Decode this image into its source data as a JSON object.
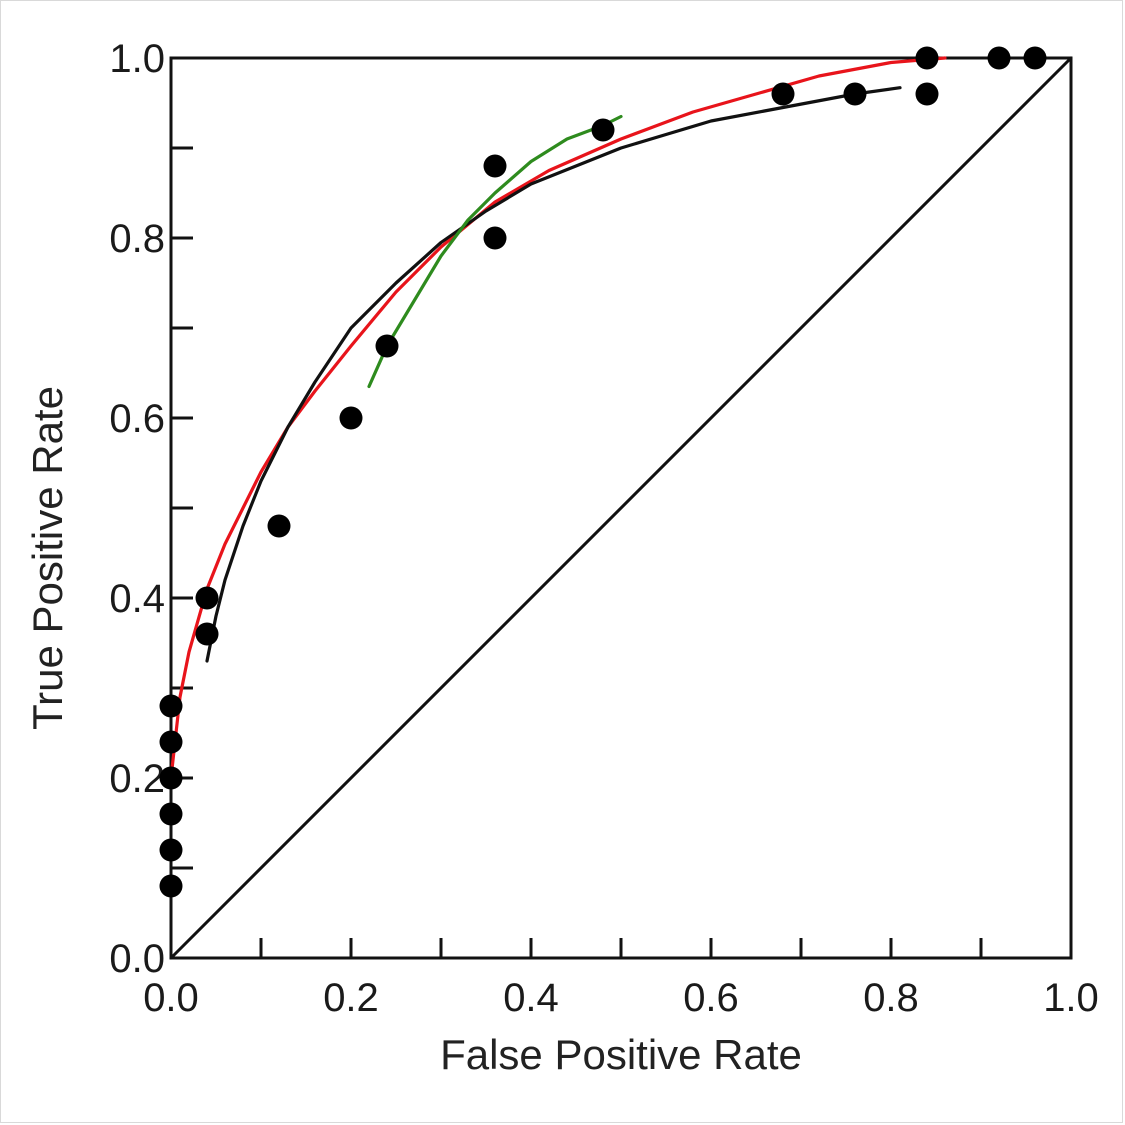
{
  "chart_data": {
    "type": "scatter",
    "title": "",
    "xlabel": "False Positive Rate",
    "ylabel": "True Positive Rate",
    "xlim": [
      0,
      1
    ],
    "ylim": [
      0,
      1
    ],
    "grid": false,
    "x_tick_labels": [
      "0.0",
      "0.2",
      "0.4",
      "0.6",
      "0.8",
      "1.0"
    ],
    "y_tick_labels": [
      "0.0",
      "0.2",
      "0.4",
      "0.6",
      "0.8",
      "1.0"
    ],
    "points": [
      {
        "x": 0.0,
        "y": 0.28
      },
      {
        "x": 0.0,
        "y": 0.24
      },
      {
        "x": 0.0,
        "y": 0.2
      },
      {
        "x": 0.0,
        "y": 0.16
      },
      {
        "x": 0.0,
        "y": 0.12
      },
      {
        "x": 0.0,
        "y": 0.08
      },
      {
        "x": 0.04,
        "y": 0.4
      },
      {
        "x": 0.04,
        "y": 0.36
      },
      {
        "x": 0.12,
        "y": 0.48
      },
      {
        "x": 0.2,
        "y": 0.6
      },
      {
        "x": 0.24,
        "y": 0.68
      },
      {
        "x": 0.36,
        "y": 0.88
      },
      {
        "x": 0.36,
        "y": 0.8
      },
      {
        "x": 0.48,
        "y": 0.92
      },
      {
        "x": 0.68,
        "y": 0.96
      },
      {
        "x": 0.76,
        "y": 0.96
      },
      {
        "x": 0.84,
        "y": 1.0
      },
      {
        "x": 0.84,
        "y": 0.96
      },
      {
        "x": 0.92,
        "y": 1.0
      },
      {
        "x": 0.96,
        "y": 1.0
      }
    ],
    "curves": [
      {
        "color": "#e8141b",
        "x": [
          0.0,
          0.01,
          0.02,
          0.04,
          0.06,
          0.08,
          0.1,
          0.13,
          0.16,
          0.2,
          0.25,
          0.3,
          0.36,
          0.42,
          0.5,
          0.58,
          0.65,
          0.72,
          0.8,
          0.86
        ],
        "y": [
          0.2,
          0.29,
          0.34,
          0.41,
          0.46,
          0.5,
          0.54,
          0.59,
          0.63,
          0.68,
          0.74,
          0.79,
          0.84,
          0.875,
          0.91,
          0.94,
          0.96,
          0.98,
          0.995,
          1.0
        ]
      },
      {
        "color": "#111111",
        "x": [
          0.04,
          0.05,
          0.06,
          0.08,
          0.1,
          0.13,
          0.16,
          0.2,
          0.25,
          0.3,
          0.35,
          0.4,
          0.45,
          0.5,
          0.55,
          0.6,
          0.68,
          0.76,
          0.81
        ],
        "y": [
          0.33,
          0.38,
          0.42,
          0.48,
          0.53,
          0.59,
          0.64,
          0.7,
          0.75,
          0.795,
          0.83,
          0.86,
          0.88,
          0.9,
          0.915,
          0.93,
          0.945,
          0.96,
          0.967
        ]
      },
      {
        "color": "#2e8b1e",
        "x": [
          0.22,
          0.24,
          0.27,
          0.3,
          0.33,
          0.36,
          0.4,
          0.44,
          0.48,
          0.5
        ],
        "y": [
          0.635,
          0.68,
          0.73,
          0.78,
          0.82,
          0.85,
          0.885,
          0.91,
          0.925,
          0.935
        ]
      },
      {
        "color": "#111111",
        "x": [
          0,
          1
        ],
        "y": [
          0,
          1
        ]
      }
    ]
  }
}
